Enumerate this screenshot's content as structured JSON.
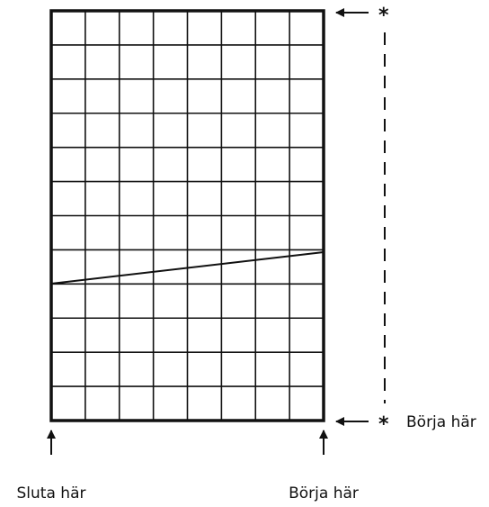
{
  "labels": {
    "top_marker": "*",
    "bottom_marker": "*",
    "right_start": "Börja här",
    "bottom_end": "Sluta här",
    "bottom_start": "Börja här"
  }
}
